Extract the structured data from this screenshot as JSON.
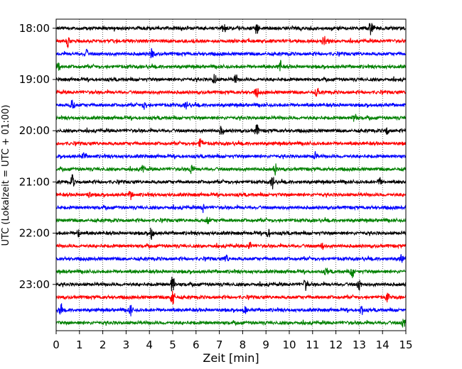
{
  "chart_data": {
    "type": "line",
    "xlabel": "Zeit  [min]",
    "ylabel": "UTC (Lokalzeit = UTC + 01:00)",
    "xlim": [
      0,
      15
    ],
    "x_ticks": [
      "0",
      "1",
      "2",
      "3",
      "4",
      "5",
      "6",
      "7",
      "8",
      "9",
      "10",
      "11",
      "12",
      "13",
      "14",
      "15"
    ],
    "y_ticks": [
      "18:00",
      "19:00",
      "20:00",
      "21:00",
      "22:00",
      "23:00"
    ],
    "grid": "vertical-dotted",
    "trace_colors": [
      "#000000",
      "#ff0000",
      "#0000ff",
      "#008000"
    ],
    "traces": [
      {
        "start": "18:00",
        "color": "#000000",
        "events": [
          [
            8.6,
            0.5
          ],
          [
            13.5,
            0.6
          ],
          [
            7.2,
            0.35
          ]
        ]
      },
      {
        "start": "18:15",
        "color": "#ff0000",
        "events": [
          [
            0.5,
            0.4
          ],
          [
            11.5,
            0.4
          ]
        ]
      },
      {
        "start": "18:30",
        "color": "#0000ff",
        "events": [
          [
            4.1,
            0.5
          ],
          [
            1.3,
            0.3
          ]
        ]
      },
      {
        "start": "18:45",
        "color": "#008000",
        "events": [
          [
            9.6,
            0.5
          ],
          [
            0.1,
            0.3
          ]
        ]
      },
      {
        "start": "19:00",
        "color": "#000000",
        "events": [
          [
            6.8,
            0.45
          ],
          [
            7.7,
            0.4
          ]
        ]
      },
      {
        "start": "19:15",
        "color": "#ff0000",
        "events": [
          [
            8.6,
            0.4
          ],
          [
            11.2,
            0.35
          ]
        ]
      },
      {
        "start": "19:30",
        "color": "#0000ff",
        "events": [
          [
            0.7,
            0.5
          ],
          [
            3.8,
            0.35
          ],
          [
            5.6,
            0.3
          ]
        ]
      },
      {
        "start": "19:45",
        "color": "#008000",
        "events": [
          [
            12.8,
            0.35
          ]
        ]
      },
      {
        "start": "20:00",
        "color": "#000000",
        "events": [
          [
            8.6,
            0.5
          ],
          [
            7.1,
            0.35
          ],
          [
            14.2,
            0.3
          ]
        ]
      },
      {
        "start": "20:15",
        "color": "#ff0000",
        "events": [
          [
            6.2,
            0.45
          ]
        ]
      },
      {
        "start": "20:30",
        "color": "#0000ff",
        "events": [
          [
            11.1,
            0.3
          ],
          [
            1.2,
            0.25
          ]
        ]
      },
      {
        "start": "20:45",
        "color": "#008000",
        "events": [
          [
            5.8,
            0.45
          ],
          [
            9.4,
            0.4
          ],
          [
            3.7,
            0.3
          ]
        ]
      },
      {
        "start": "21:00",
        "color": "#000000",
        "events": [
          [
            0.7,
            0.55
          ],
          [
            9.3,
            0.55
          ],
          [
            13.9,
            0.3
          ]
        ]
      },
      {
        "start": "21:15",
        "color": "#ff0000",
        "events": [
          [
            1.4,
            0.3
          ],
          [
            3.2,
            0.3
          ]
        ]
      },
      {
        "start": "21:30",
        "color": "#0000ff",
        "events": [
          [
            6.3,
            0.3
          ]
        ]
      },
      {
        "start": "21:45",
        "color": "#008000",
        "events": [
          [
            6.5,
            0.4
          ]
        ]
      },
      {
        "start": "22:00",
        "color": "#000000",
        "events": [
          [
            4.1,
            0.55
          ],
          [
            1.0,
            0.4
          ],
          [
            9.1,
            0.3
          ]
        ]
      },
      {
        "start": "22:15",
        "color": "#ff0000",
        "events": [
          [
            8.3,
            0.35
          ],
          [
            11.4,
            0.3
          ]
        ]
      },
      {
        "start": "22:30",
        "color": "#0000ff",
        "events": [
          [
            14.8,
            0.3
          ],
          [
            7.3,
            0.3
          ]
        ]
      },
      {
        "start": "22:45",
        "color": "#008000",
        "events": [
          [
            12.7,
            0.5
          ],
          [
            11.6,
            0.3
          ]
        ]
      },
      {
        "start": "23:00",
        "color": "#000000",
        "events": [
          [
            5.0,
            0.8
          ],
          [
            10.7,
            0.45
          ],
          [
            13.0,
            0.45
          ]
        ]
      },
      {
        "start": "23:15",
        "color": "#ff0000",
        "events": [
          [
            5.0,
            0.8
          ],
          [
            14.2,
            0.35
          ]
        ]
      },
      {
        "start": "23:30",
        "color": "#0000ff",
        "events": [
          [
            0.2,
            0.4
          ],
          [
            3.2,
            0.45
          ],
          [
            13.1,
            0.4
          ],
          [
            8.1,
            0.3
          ]
        ]
      },
      {
        "start": "23:45",
        "color": "#008000",
        "events": [
          [
            14.9,
            0.4
          ]
        ]
      }
    ]
  }
}
